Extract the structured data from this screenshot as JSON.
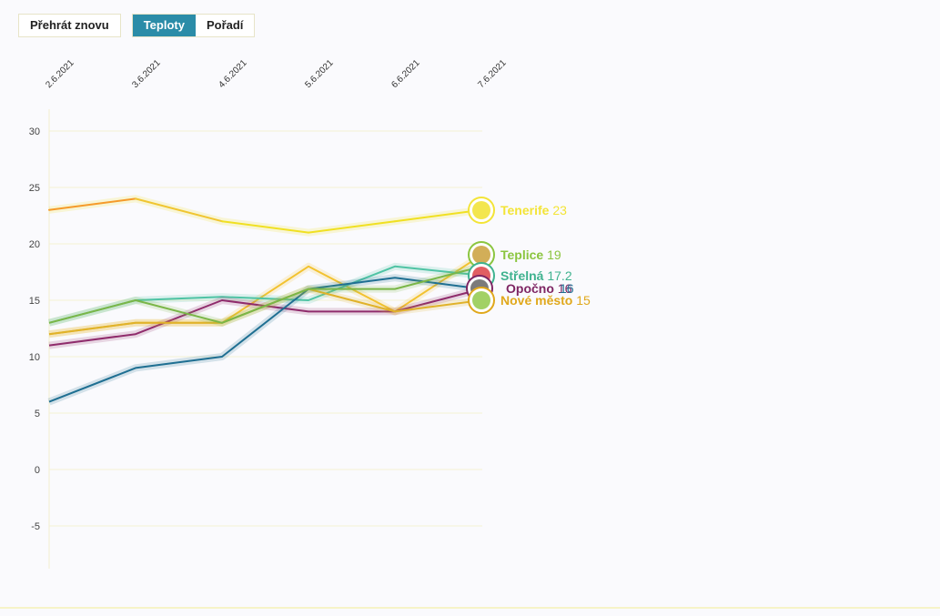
{
  "controls": {
    "replay_label": "Přehrát znovu",
    "tab_temps_label": "Teploty",
    "tab_rank_label": "Pořadí",
    "active_tab": "Teploty"
  },
  "chart_data": {
    "type": "line",
    "x": [
      "2.6.2021",
      "3.6.2021",
      "4.6.2021",
      "5.6.2021",
      "6.6.2021",
      "7.6.2021"
    ],
    "y_ticks": [
      30,
      25,
      20,
      15,
      10,
      5,
      0,
      -5
    ],
    "y_tick_labels": [
      "30",
      "25",
      "20",
      "15",
      "10",
      "5",
      "0",
      "-5"
    ],
    "ylim": [
      -8,
      32
    ],
    "grid": true,
    "series": [
      {
        "name": "Tenerife",
        "label_value": "23",
        "color": "#f0e022",
        "label_color": "#f3e437",
        "values": [
          23,
          24,
          22,
          21,
          22,
          23
        ],
        "segment_colors": [
          "#f59a2a",
          "#f0c531",
          "#f0e022",
          "#f0e022",
          "#f0e022"
        ]
      },
      {
        "name": "Teplice",
        "label_value": "19",
        "color": "#f2c230",
        "label_color": "#8bc53f",
        "values": [
          12,
          13,
          13,
          18,
          14,
          19
        ],
        "icon_color": "#c79a2e"
      },
      {
        "name": "Střelná",
        "label_value": "17.2",
        "color": "#4fc3a4",
        "label_color": "#3fb28f",
        "values": [
          13,
          15,
          15.3,
          15,
          18,
          17.2
        ],
        "icon_color": "#d9363b"
      },
      {
        "name": "Opočno",
        "label_value": "16",
        "color": "#8f2c6c",
        "label_color": "#7e2563",
        "values": [
          11,
          12,
          15,
          14,
          14,
          16
        ],
        "icon_color": "#5a5a5a"
      },
      {
        "name": "",
        "label_value": "16",
        "color": "#1f6f92",
        "label_color": "#1f6f92",
        "values": [
          6,
          9,
          10,
          16,
          17,
          16
        ],
        "icon_color": "#1f6f92"
      },
      {
        "name": "Nové město",
        "label_value": "15",
        "color": "#e0b22a",
        "label_color": "#e0a81c",
        "values": [
          12,
          13,
          13,
          16,
          14,
          15
        ],
        "icon_color": "#8bc53f"
      },
      {
        "name": "",
        "label_value": "",
        "color": "#7ab648",
        "label_color": "#7ab648",
        "values": [
          13,
          15,
          13,
          16,
          16,
          18
        ],
        "icon_color": "#7ab648"
      }
    ]
  }
}
